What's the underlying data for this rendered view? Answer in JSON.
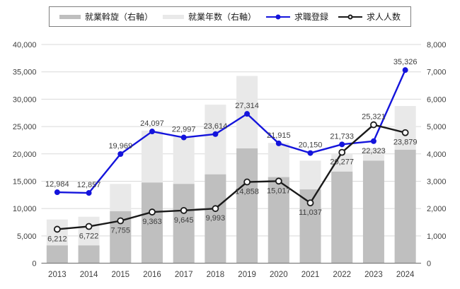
{
  "chart_data": {
    "type": "bar",
    "subtype": "combo-bar-line",
    "title": "",
    "categories": [
      "2013",
      "2014",
      "2015",
      "2016",
      "2017",
      "2018",
      "2019",
      "2020",
      "2021",
      "2022",
      "2023",
      "2024"
    ],
    "series": [
      {
        "name": "就業斡旋（右軸）",
        "type": "bar",
        "axis": "right",
        "color": "#bfbfbf",
        "values": [
          650,
          650,
          1900,
          2950,
          2900,
          3250,
          4200,
          3150,
          2700,
          3350,
          3750,
          4150
        ]
      },
      {
        "name": "就業年数（右軸）",
        "type": "bar",
        "axis": "right",
        "color": "#e9e9e9",
        "values": [
          1600,
          1700,
          2900,
          4850,
          4650,
          5800,
          6850,
          4400,
          3750,
          4000,
          4200,
          5750
        ]
      },
      {
        "name": "求職登録",
        "type": "line",
        "axis": "left",
        "color": "#1414dc",
        "marker": "filled-circle",
        "values": [
          12984,
          12857,
          19969,
          24097,
          22997,
          23614,
          27314,
          21915,
          20150,
          21733,
          22323,
          35326
        ],
        "label_pos": [
          "above",
          "above",
          "above",
          "above",
          "above",
          "above",
          "above",
          "above",
          "above",
          "above",
          "below",
          "above"
        ]
      },
      {
        "name": "求人人数",
        "type": "line",
        "axis": "left",
        "color": "#1a1a1a",
        "marker": "open-circle",
        "values": [
          6212,
          6722,
          7755,
          9363,
          9645,
          9993,
          14858,
          15017,
          11037,
          20277,
          25321,
          23879
        ],
        "label_pos": [
          "below",
          "below",
          "below",
          "below",
          "below",
          "below",
          "below",
          "below",
          "below",
          "below",
          "above",
          "below"
        ]
      }
    ],
    "left_axis": {
      "min": 0,
      "max": 40000,
      "step": 5000,
      "ticks": [
        "0",
        "5,000",
        "10,000",
        "15,000",
        "20,000",
        "25,000",
        "30,000",
        "35,000",
        "40,000"
      ]
    },
    "right_axis": {
      "min": 0,
      "max": 8000,
      "step": 1000,
      "ticks": [
        "0",
        "1,000",
        "2,000",
        "3,000",
        "4,000",
        "5,000",
        "6,000",
        "7,000",
        "8,000"
      ]
    },
    "legend_position": "top",
    "grid": true,
    "colors": {
      "gridline": "#d9d9d9",
      "axis_line": "#7f7f7f",
      "tick_text": "#404040",
      "data_label_text": "#404040",
      "bar_dark": "#bfbfbf",
      "bar_light": "#e9e9e9",
      "line_blue": "#1414dc",
      "line_black": "#1a1a1a"
    }
  }
}
